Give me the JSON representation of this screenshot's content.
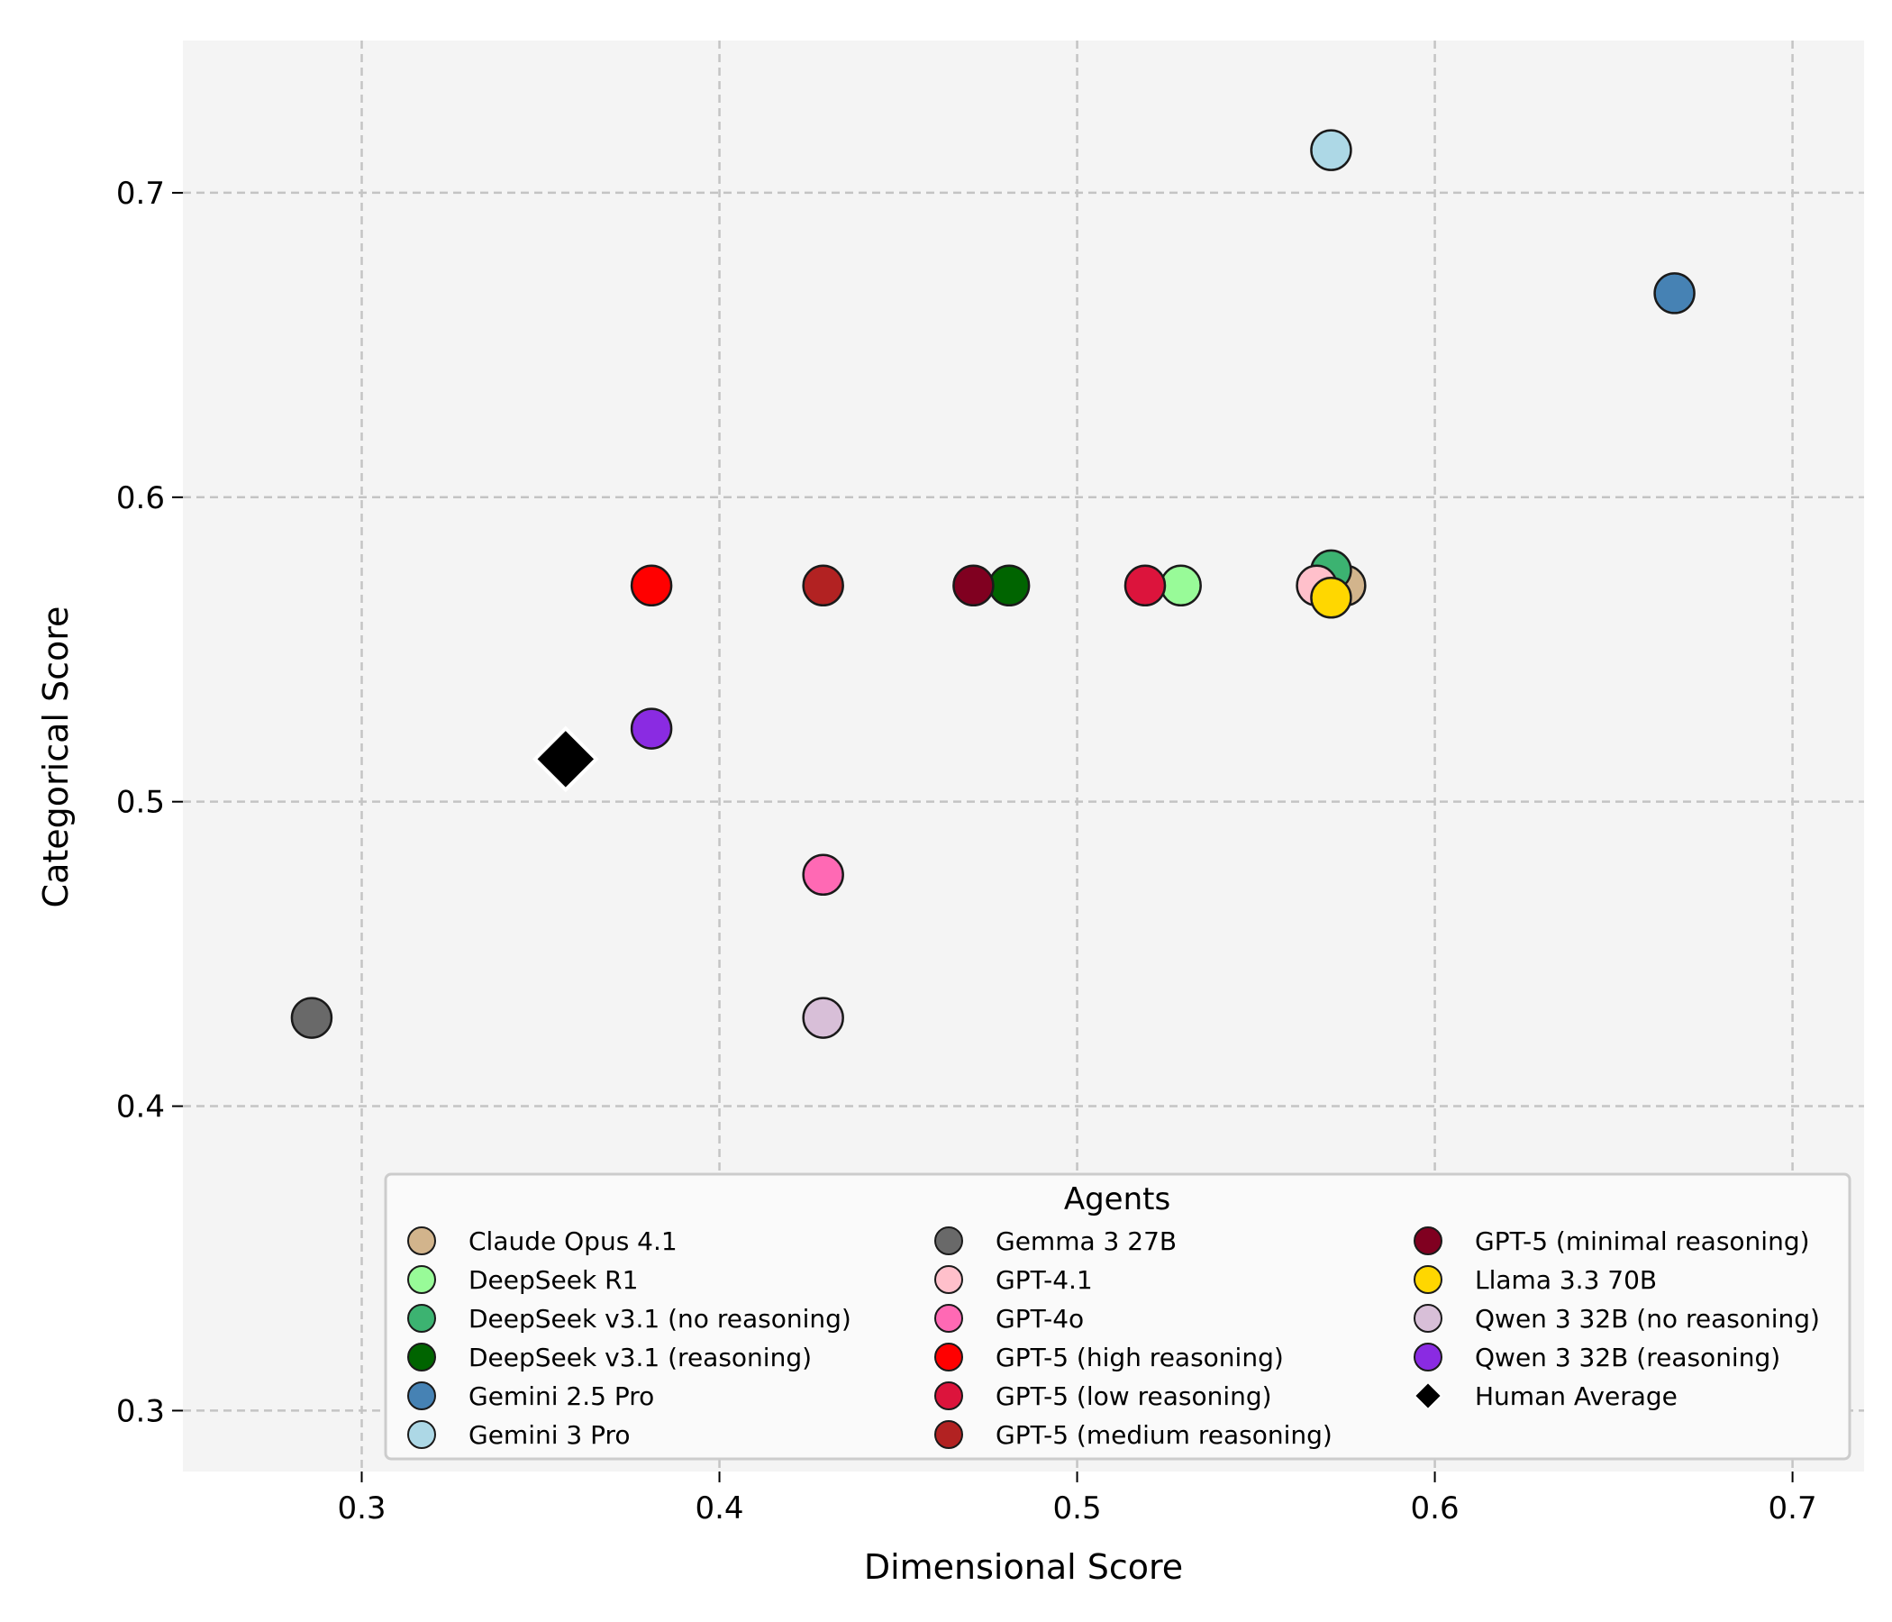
{
  "chart_data": {
    "type": "scatter",
    "xlabel": "Dimensional Score",
    "ylabel": "Categorical Score",
    "xlim": [
      0.25,
      0.72
    ],
    "ylim": [
      0.28,
      0.75
    ],
    "xticks": [
      0.3,
      0.4,
      0.5,
      0.6,
      0.7
    ],
    "xtick_labels": [
      "0.3",
      "0.4",
      "0.5",
      "0.6",
      "0.7"
    ],
    "yticks": [
      0.3,
      0.4,
      0.5,
      0.6,
      0.7
    ],
    "ytick_labels": [
      "0.3",
      "0.4",
      "0.5",
      "0.6",
      "0.7"
    ],
    "grid": true,
    "legend_title": "Agents",
    "legend_position": "lower-right",
    "series": [
      {
        "name": "Claude Opus 4.1",
        "x": 0.575,
        "y": 0.571,
        "color": "#D2B48C",
        "marker": "circle"
      },
      {
        "name": "DeepSeek R1",
        "x": 0.529,
        "y": 0.571,
        "color": "#98FB98",
        "marker": "circle"
      },
      {
        "name": "DeepSeek v3.1 (no reasoning)",
        "x": 0.571,
        "y": 0.576,
        "color": "#3CB371",
        "marker": "circle"
      },
      {
        "name": "DeepSeek v3.1 (reasoning)",
        "x": 0.481,
        "y": 0.571,
        "color": "#006400",
        "marker": "circle"
      },
      {
        "name": "Gemini 2.5 Pro",
        "x": 0.667,
        "y": 0.667,
        "color": "#4682B4",
        "marker": "circle"
      },
      {
        "name": "Gemini 3 Pro",
        "x": 0.571,
        "y": 0.714,
        "color": "#ADD8E6",
        "marker": "circle"
      },
      {
        "name": "Gemma 3 27B",
        "x": 0.286,
        "y": 0.429,
        "color": "#696969",
        "marker": "circle"
      },
      {
        "name": "GPT-4.1",
        "x": 0.567,
        "y": 0.571,
        "color": "#FFC0CB",
        "marker": "circle"
      },
      {
        "name": "GPT-4o",
        "x": 0.429,
        "y": 0.476,
        "color": "#FF69B4",
        "marker": "circle"
      },
      {
        "name": "GPT-5 (high reasoning)",
        "x": 0.381,
        "y": 0.571,
        "color": "#FF0000",
        "marker": "circle"
      },
      {
        "name": "GPT-5 (low reasoning)",
        "x": 0.519,
        "y": 0.571,
        "color": "#DC143C",
        "marker": "circle"
      },
      {
        "name": "GPT-5 (medium reasoning)",
        "x": 0.429,
        "y": 0.571,
        "color": "#B22222",
        "marker": "circle"
      },
      {
        "name": "GPT-5 (minimal reasoning)",
        "x": 0.471,
        "y": 0.571,
        "color": "#800020",
        "marker": "circle"
      },
      {
        "name": "Llama 3.3 70B",
        "x": 0.571,
        "y": 0.567,
        "color": "#FFD700",
        "marker": "circle"
      },
      {
        "name": "Qwen 3 32B (no reasoning)",
        "x": 0.429,
        "y": 0.429,
        "color": "#D8BFD8",
        "marker": "circle"
      },
      {
        "name": "Qwen 3 32B (reasoning)",
        "x": 0.381,
        "y": 0.524,
        "color": "#8A2BE2",
        "marker": "circle"
      },
      {
        "name": "Human Average",
        "x": 0.357,
        "y": 0.514,
        "color": "#000000",
        "marker": "diamond"
      }
    ]
  }
}
